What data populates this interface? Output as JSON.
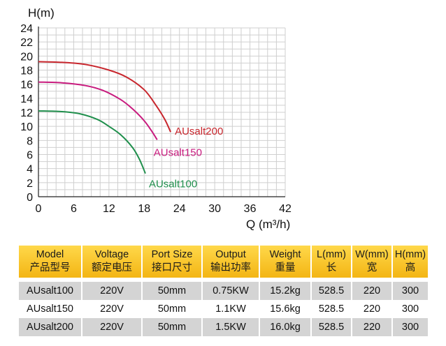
{
  "chart_data": {
    "type": "line",
    "xlabel": "Q (m³/h)",
    "ylabel": "H(m)",
    "xlim": [
      0,
      42
    ],
    "ylim": [
      0,
      24
    ],
    "xticks": [
      0,
      6,
      12,
      18,
      24,
      30,
      36,
      42
    ],
    "yticks": [
      0,
      2,
      4,
      6,
      8,
      10,
      12,
      14,
      16,
      18,
      20,
      22,
      24
    ],
    "grid": true,
    "series": [
      {
        "name": "AUsalt200",
        "color": "#c8262d",
        "x": [
          0,
          4,
          8,
          12,
          15,
          18,
          20,
          21.5,
          22.5
        ],
        "y": [
          19.2,
          19.1,
          18.8,
          18.0,
          17.0,
          15.2,
          13.0,
          11.0,
          9.2
        ]
      },
      {
        "name": "AUsalt150",
        "color": "#c81b7e",
        "x": [
          0,
          4,
          8,
          11,
          14,
          16,
          18,
          19.3,
          20.2
        ],
        "y": [
          16.3,
          16.2,
          15.8,
          15.1,
          13.8,
          12.5,
          10.8,
          9.3,
          8.1
        ]
      },
      {
        "name": "AUsalt100",
        "color": "#1f8f4c",
        "x": [
          0,
          4,
          7,
          10,
          12,
          14,
          16,
          17.2,
          18.2
        ],
        "y": [
          12.2,
          12.1,
          11.8,
          11.0,
          10.0,
          8.8,
          7.0,
          5.3,
          3.3
        ]
      }
    ]
  },
  "table": {
    "headers": [
      {
        "en": "Model",
        "cn": "产品型号"
      },
      {
        "en": "Voltage",
        "cn": "额定电压"
      },
      {
        "en": "Port Size",
        "cn": "接口尺寸"
      },
      {
        "en": "Output",
        "cn": "输出功率"
      },
      {
        "en": "Weight",
        "cn": "重量"
      },
      {
        "en": "L(mm)",
        "cn": "长"
      },
      {
        "en": "W(mm)",
        "cn": "宽"
      },
      {
        "en": "H(mm)",
        "cn": "高"
      }
    ],
    "rows": [
      [
        "AUsalt100",
        "220V",
        "50mm",
        "0.75KW",
        "15.2kg",
        "528.5",
        "220",
        "300"
      ],
      [
        "AUsalt150",
        "220V",
        "50mm",
        "1.1KW",
        "15.6kg",
        "528.5",
        "220",
        "300"
      ],
      [
        "AUsalt200",
        "220V",
        "50mm",
        "1.5KW",
        "16.0kg",
        "528.5",
        "220",
        "300"
      ]
    ]
  }
}
